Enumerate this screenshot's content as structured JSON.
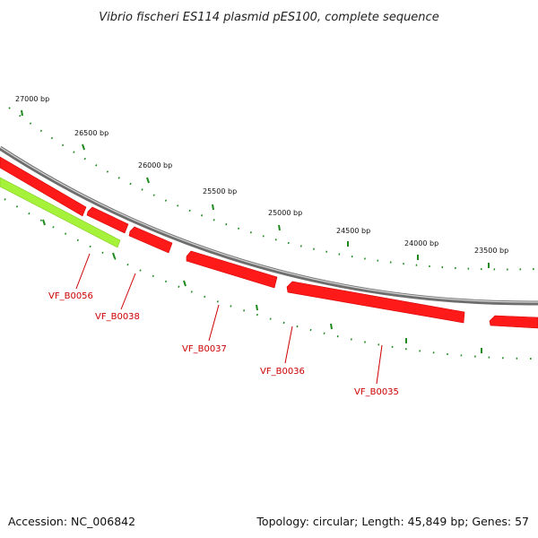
{
  "title": "Vibrio fischeri ES114 plasmid pES100, complete sequence",
  "footer": {
    "accession": "Accession: NC_006842",
    "summary": "Topology: circular; Length: 45,849 bp; Genes: 57"
  },
  "colors": {
    "backbone": "#8a8a8a",
    "gene_red": "#ff1a1a",
    "gene_green": "#a6f23b",
    "tick_green": "#1e8a1e",
    "label_red": "#cc0000"
  },
  "ticks": [
    {
      "label": "27000 bp"
    },
    {
      "label": "26500 bp"
    },
    {
      "label": "26000 bp"
    },
    {
      "label": "25500 bp"
    },
    {
      "label": "25000 bp"
    },
    {
      "label": "24500 bp"
    },
    {
      "label": "24000 bp"
    },
    {
      "label": "23500 bp"
    }
  ],
  "genes": [
    {
      "label": "VF_B0056"
    },
    {
      "label": "VF_B0038"
    },
    {
      "label": "VF_B0037"
    },
    {
      "label": "VF_B0036"
    },
    {
      "label": "VF_B0035"
    }
  ]
}
